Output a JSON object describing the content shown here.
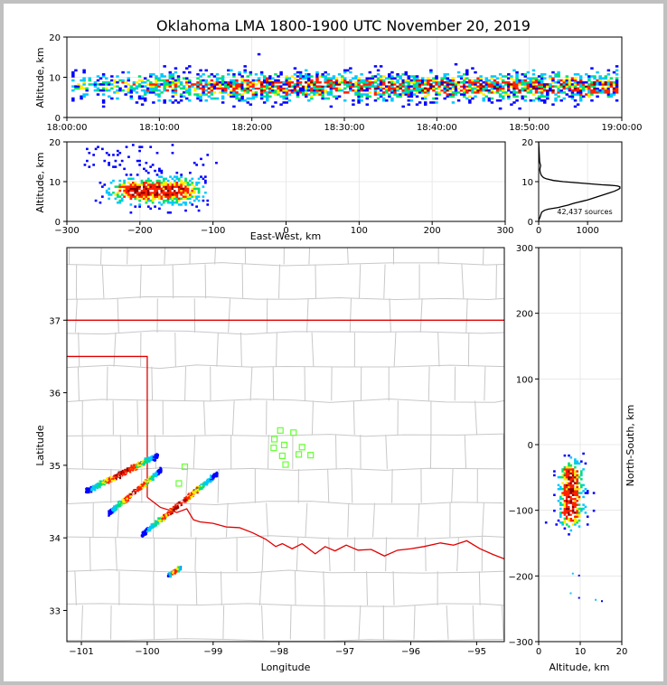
{
  "figure": {
    "title": "Oklahoma LMA 1800-1900 UTC November 20, 2019"
  },
  "colors": {
    "low": "#0000ff",
    "mid_low": "#00c8ff",
    "mid": "#00e070",
    "mid_high": "#ffee00",
    "high": "#ff2000",
    "peak": "#880000",
    "extreme": "#ffffff",
    "state_border": "#e00000",
    "county_lines": "#c8c8c8",
    "stations": "#66ff33"
  },
  "chart_data": [
    {
      "id": "time_height",
      "type": "heatmap",
      "xlabel": "",
      "ylabel": "Altitude, km",
      "xlim": [
        "18:00:00",
        "19:00:00"
      ],
      "ylim": [
        0,
        20
      ],
      "x_ticks": [
        "18:00:00",
        "18:10:00",
        "18:20:00",
        "18:30:00",
        "18:40:00",
        "18:50:00",
        "19:00:00"
      ],
      "y_ticks": [
        0,
        10,
        20
      ],
      "grid": true,
      "source_altitude_band_km": [
        3,
        12
      ],
      "source_altitude_peak_km": 7.5,
      "first_source": "18:00:30",
      "last_source": "18:59:30"
    },
    {
      "id": "ew_height",
      "type": "heatmap",
      "xlabel": "East-West, km",
      "ylabel": "Altitude, km",
      "xlim": [
        -300,
        300
      ],
      "ylim": [
        0,
        20
      ],
      "x_ticks": [
        -300,
        -200,
        -100,
        0,
        100,
        200,
        300
      ],
      "y_ticks": [
        0,
        10,
        20
      ],
      "grid": true,
      "source_x_range_km": [
        -270,
        -105
      ],
      "core_x_km": [
        -230,
        -130
      ],
      "core_alt_km": [
        4,
        11
      ]
    },
    {
      "id": "alt_histogram",
      "type": "line",
      "xlim": [
        0,
        1700
      ],
      "ylim": [
        0,
        20
      ],
      "x_ticks": [
        0,
        1000
      ],
      "y_ticks": [
        0,
        10,
        20
      ],
      "grid": true,
      "annotation": "42,437 sources",
      "x": [
        0,
        25,
        60,
        120,
        200,
        300,
        400,
        500,
        600,
        700,
        800,
        900,
        1000,
        1100,
        1200,
        1350,
        1450,
        1550,
        1620,
        1660,
        1660,
        1620,
        1550,
        1450,
        1300,
        1100,
        900,
        700,
        500,
        300,
        160,
        100,
        60,
        40,
        30,
        25,
        30,
        40,
        20,
        12,
        0
      ],
      "y": [
        0.2,
        1.0,
        2.3,
        2.8,
        3.1,
        3.3,
        3.5,
        3.8,
        4.1,
        4.5,
        4.8,
        5.1,
        5.4,
        5.8,
        6.2,
        6.8,
        7.2,
        7.6,
        8.0,
        8.3,
        8.7,
        8.9,
        9.0,
        9.1,
        9.2,
        9.4,
        9.6,
        9.8,
        10.0,
        10.3,
        10.7,
        11.0,
        11.5,
        12.0,
        12.5,
        13.0,
        13.5,
        14.0,
        15.0,
        17.0,
        20.0
      ]
    },
    {
      "id": "plan_map",
      "type": "scatter",
      "xlabel": "Longitude",
      "ylabel": "Latitude",
      "xlim": [
        -101.22,
        -94.58
      ],
      "ylim": [
        32.57,
        38.0
      ],
      "x_ticks": [
        -101,
        -100,
        -99,
        -98,
        -97,
        -96,
        -95
      ],
      "y_ticks": [
        33,
        34,
        35,
        36,
        37
      ],
      "storm_cells": [
        {
          "lon": [
            -100.95,
            -99.85
          ],
          "lat": [
            34.65,
            35.15
          ]
        },
        {
          "lon": [
            -100.6,
            -99.8
          ],
          "lat": [
            34.35,
            34.95
          ]
        },
        {
          "lon": [
            -100.1,
            -98.95
          ],
          "lat": [
            34.05,
            34.9
          ]
        },
        {
          "lon": [
            -99.7,
            -99.5
          ],
          "lat": [
            33.5,
            33.6
          ]
        }
      ],
      "stations": [
        {
          "lon": -97.98,
          "lat": 35.48
        },
        {
          "lon": -97.78,
          "lat": 35.45
        },
        {
          "lon": -98.07,
          "lat": 35.36
        },
        {
          "lon": -98.08,
          "lat": 35.24
        },
        {
          "lon": -97.92,
          "lat": 35.28
        },
        {
          "lon": -97.65,
          "lat": 35.25
        },
        {
          "lon": -97.95,
          "lat": 35.13
        },
        {
          "lon": -97.7,
          "lat": 35.15
        },
        {
          "lon": -97.52,
          "lat": 35.14
        },
        {
          "lon": -97.9,
          "lat": 35.01
        },
        {
          "lon": -99.43,
          "lat": 34.98
        },
        {
          "lon": -99.52,
          "lat": 34.75
        }
      ]
    },
    {
      "id": "ns_height",
      "type": "heatmap",
      "xlabel": "Altitude, km",
      "ylabel": "North-South, km",
      "xlim": [
        0,
        20
      ],
      "ylim": [
        -300,
        300
      ],
      "x_ticks": [
        0,
        10,
        20
      ],
      "y_ticks": [
        -300,
        -200,
        -100,
        0,
        100,
        200,
        300
      ],
      "grid": true,
      "source_y_range_km": [
        -145,
        10
      ],
      "core_y_km": [
        -125,
        -30
      ]
    }
  ]
}
